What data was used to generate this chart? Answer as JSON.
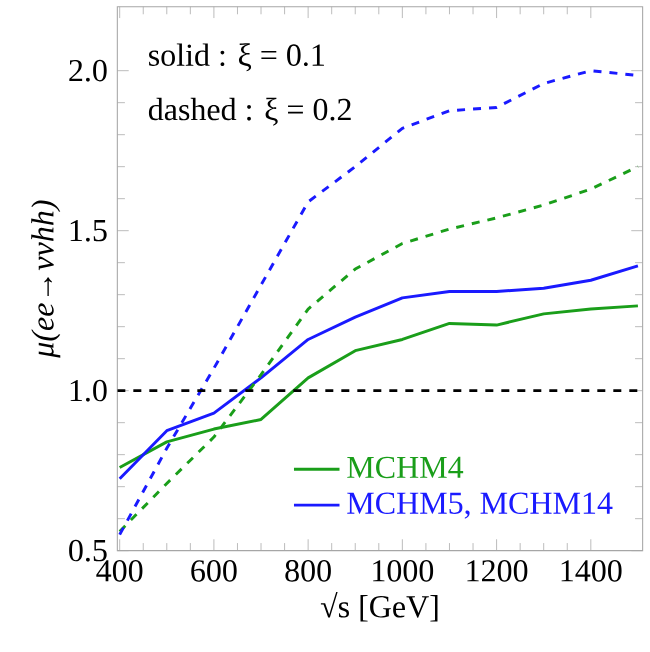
{
  "chart_data": {
    "type": "line",
    "xlabel": "√s [GeV]",
    "ylabel": "μ(ee→ννhh)",
    "x": [
      400,
      500,
      600,
      700,
      800,
      900,
      1000,
      1100,
      1200,
      1300,
      1400,
      1500
    ],
    "series": [
      {
        "name": "MCHM4",
        "color": "#1a9e1a",
        "line_style": "solid",
        "values": [
          0.76,
          0.84,
          0.88,
          0.91,
          1.04,
          1.125,
          1.16,
          1.21,
          1.205,
          1.24,
          1.255,
          1.265
        ]
      },
      {
        "name": "MCHM5, MCHM14",
        "color": "#1a1aff",
        "line_style": "solid",
        "values": [
          0.725,
          0.875,
          0.93,
          1.04,
          1.16,
          1.23,
          1.29,
          1.31,
          1.31,
          1.32,
          1.345,
          1.39
        ]
      },
      {
        "color": "#1a9e1a",
        "line_style": "dashed",
        "values": [
          0.56,
          0.71,
          0.855,
          1.05,
          1.255,
          1.38,
          1.46,
          1.505,
          1.54,
          1.58,
          1.63,
          1.7
        ]
      },
      {
        "color": "#1a1aff",
        "line_style": "dashed",
        "values": [
          0.55,
          0.82,
          1.07,
          1.33,
          1.59,
          1.7,
          1.82,
          1.875,
          1.885,
          1.96,
          2.0,
          1.985
        ]
      }
    ],
    "xlim": [
      395,
      1510
    ],
    "ylim": [
      0.5,
      2.2
    ],
    "xticks": [
      400,
      600,
      800,
      1000,
      1200,
      1400
    ],
    "yticks": [
      {
        "value": 0.5,
        "label": "0.5"
      },
      {
        "value": 1.0,
        "label": "1.0"
      },
      {
        "value": 1.5,
        "label": "1.5"
      },
      {
        "value": 2.0,
        "label": "2.0"
      }
    ],
    "ref_lines": [
      {
        "axis": "y",
        "value": 1.0,
        "color": "#000000",
        "line_style": "dashed"
      }
    ],
    "annotations": [
      "solid : ξ = 0.1",
      "dashed : ξ = 0.2"
    ],
    "legend": "bottom right",
    "grid": false,
    "marker": "none"
  }
}
